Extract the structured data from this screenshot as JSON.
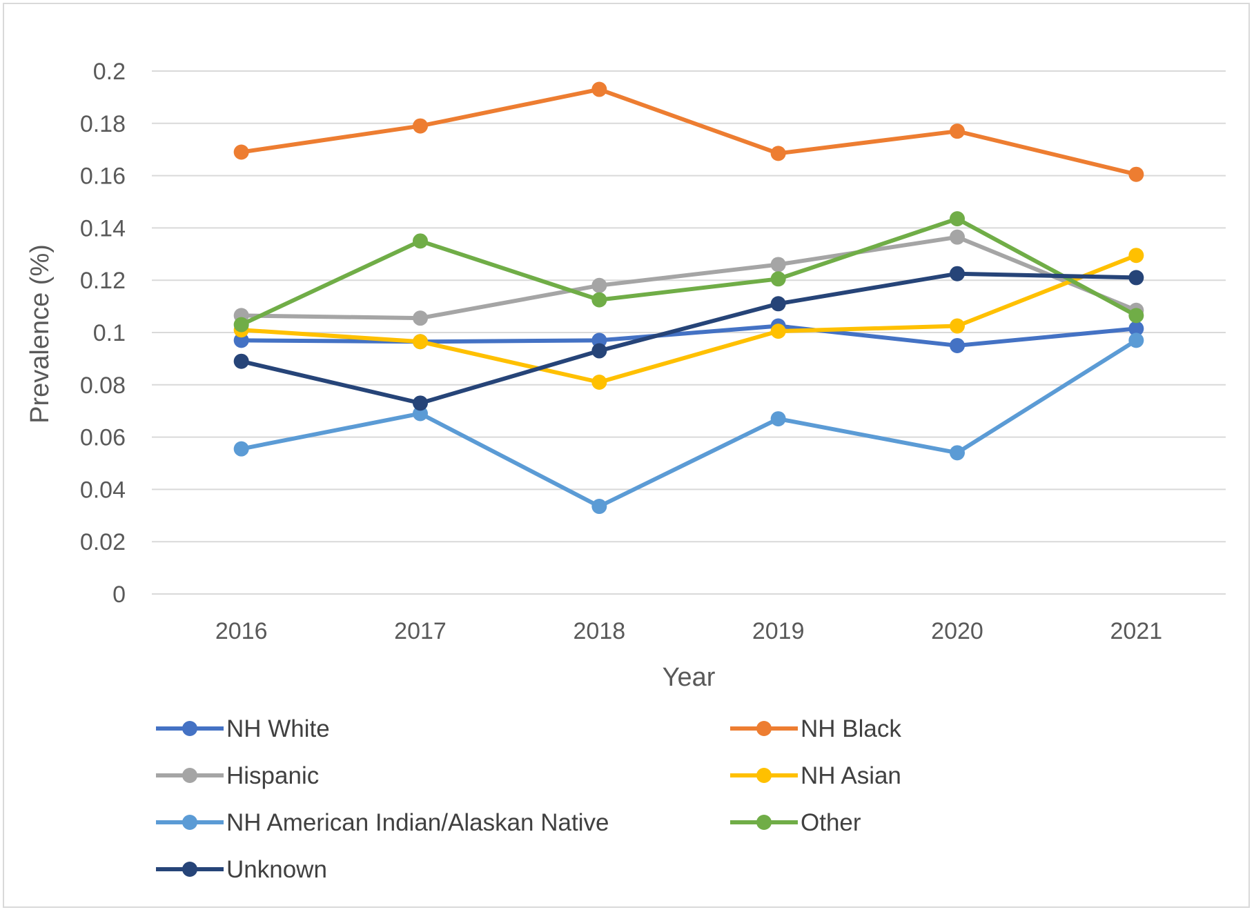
{
  "chart_data": {
    "type": "line",
    "title": "",
    "xlabel": "Year",
    "ylabel": "Prevalence (%)",
    "x": [
      "2016",
      "2017",
      "2018",
      "2019",
      "2020",
      "2021"
    ],
    "ylim": [
      0,
      0.2
    ],
    "yticks": [
      "0",
      "0.02",
      "0.04",
      "0.06",
      "0.08",
      "0.1",
      "0.12",
      "0.14",
      "0.16",
      "0.18",
      "0.2"
    ],
    "ytick_values": [
      0,
      0.02,
      0.04,
      0.06,
      0.08,
      0.1,
      0.12,
      0.14,
      0.16,
      0.18,
      0.2
    ],
    "grid": true,
    "legend_position": "bottom",
    "series": [
      {
        "name": "NH White",
        "color": "#4472c4",
        "values": [
          0.097,
          0.0965,
          0.097,
          0.1025,
          0.095,
          0.1015
        ]
      },
      {
        "name": "NH Black",
        "color": "#ed7d31",
        "values": [
          0.169,
          0.179,
          0.193,
          0.1685,
          0.177,
          0.1605
        ]
      },
      {
        "name": "Hispanic",
        "color": "#a5a5a5",
        "values": [
          0.1065,
          0.1055,
          0.118,
          0.126,
          0.1365,
          0.1085
        ]
      },
      {
        "name": "NH Asian",
        "color": "#ffc000",
        "values": [
          0.101,
          0.0965,
          0.081,
          0.1005,
          0.1025,
          0.1295
        ]
      },
      {
        "name": "NH American Indian/Alaskan Native",
        "color": "#5b9bd5",
        "values": [
          0.0555,
          0.069,
          0.0335,
          0.067,
          0.054,
          0.097
        ]
      },
      {
        "name": "Other",
        "color": "#70ad47",
        "values": [
          0.103,
          0.135,
          0.1125,
          0.1205,
          0.1435,
          0.1065
        ]
      },
      {
        "name": "Unknown",
        "color": "#264478",
        "values": [
          0.089,
          0.073,
          0.093,
          0.111,
          0.1225,
          0.121
        ]
      }
    ]
  }
}
